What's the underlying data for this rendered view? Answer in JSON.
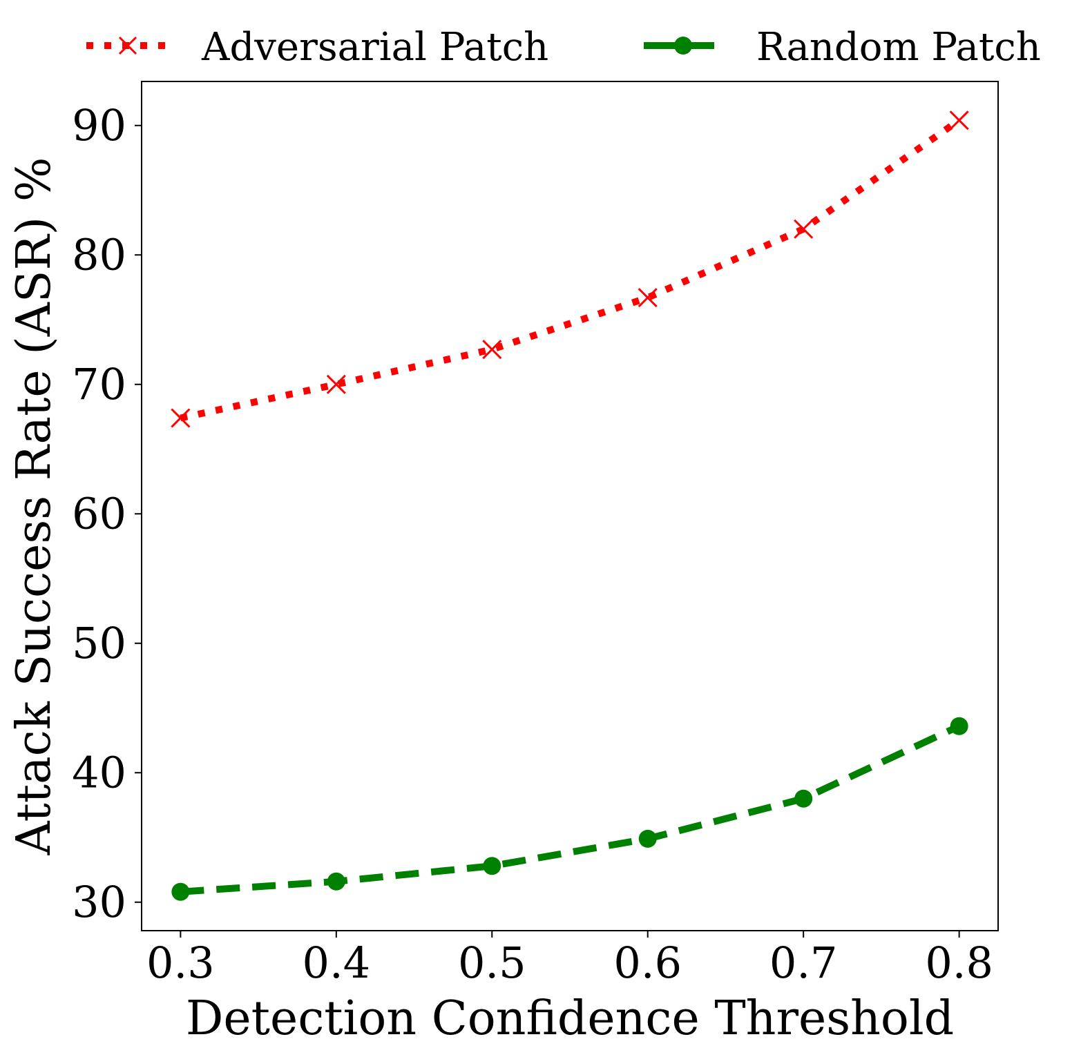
{
  "chart_data": {
    "type": "line",
    "xlabel": "Detection Confidence Threshold",
    "ylabel": "Attack Success Rate (ASR) %",
    "x": [
      0.3,
      0.4,
      0.5,
      0.6,
      0.7,
      0.8
    ],
    "xlim": [
      0.275,
      0.825
    ],
    "ylim": [
      27.8,
      93.4
    ],
    "xticks": [
      0.3,
      0.4,
      0.5,
      0.6,
      0.7,
      0.8
    ],
    "xtick_labels": [
      "0.3",
      "0.4",
      "0.5",
      "0.6",
      "0.7",
      "0.8"
    ],
    "yticks": [
      30,
      40,
      50,
      60,
      70,
      80,
      90
    ],
    "ytick_labels": [
      "30",
      "40",
      "50",
      "60",
      "70",
      "80",
      "90"
    ],
    "grid": false,
    "legend_position": "top, outside plot, two columns",
    "series": [
      {
        "name": "Adversarial Patch",
        "values": [
          67.4,
          70.0,
          72.7,
          76.7,
          82.0,
          90.4
        ],
        "color": "#ff0000",
        "line_style": "dotted",
        "marker": "x"
      },
      {
        "name": "Random Patch",
        "values": [
          30.8,
          31.6,
          32.8,
          34.9,
          38.0,
          43.6
        ],
        "color": "#008000",
        "line_style": "dashed",
        "marker": "circle"
      }
    ]
  }
}
